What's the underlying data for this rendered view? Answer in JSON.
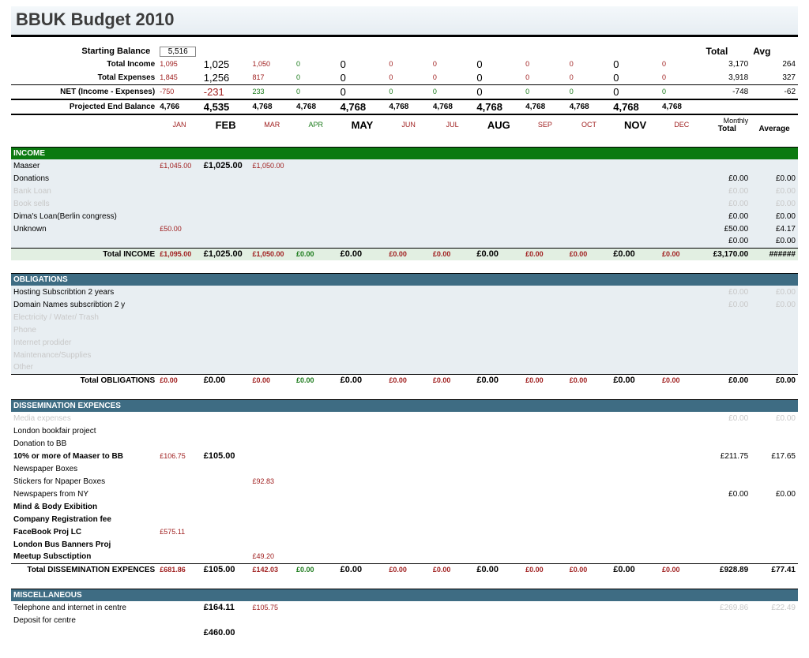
{
  "title": "BBUK Budget 2010",
  "colors": {
    "income_section": "#0b7a10",
    "other_section": "#3e6c83",
    "shaded_row": "#e8eef2",
    "green_text": "#1a7a1a",
    "red_text": "#a02020",
    "faded_text": "#c8c8c8"
  },
  "months": {
    "short": [
      "JAN",
      "FEB",
      "MAR",
      "APR",
      "MAY",
      "JUN",
      "JUL",
      "AUG",
      "SEP",
      "OCT",
      "NOV",
      "DEC"
    ],
    "big_idx": [
      1,
      4,
      7,
      10
    ]
  },
  "headers": {
    "starting_balance_label": "Starting Balance",
    "total_income_label": "Total Income",
    "total_expenses_label": "Total Expenses",
    "net_label": "NET (Income - Expenses)",
    "projected_label": "Projected End Balance",
    "total": "Total",
    "avg": "Avg",
    "monthly": "Monthly",
    "total2": "Total",
    "average": "Average"
  },
  "summary": {
    "starting_balance": "5,516",
    "total_income": [
      "1,095",
      "1,025",
      "1,050",
      "0",
      "0",
      "0",
      "0",
      "0",
      "0",
      "0",
      "0",
      "0"
    ],
    "total_income_tot": "3,170",
    "total_income_avg": "264",
    "total_expenses": [
      "1,845",
      "1,256",
      "817",
      "0",
      "0",
      "0",
      "0",
      "0",
      "0",
      "0",
      "0",
      "0"
    ],
    "total_expenses_tot": "3,918",
    "total_expenses_avg": "327",
    "net": [
      "-750",
      "-231",
      "233",
      "0",
      "0",
      "0",
      "0",
      "0",
      "0",
      "0",
      "0",
      "0"
    ],
    "net_tot": "-748",
    "net_avg": "-62",
    "projected": [
      "4,766",
      "4,535",
      "4,768",
      "4,768",
      "4,768",
      "4,768",
      "4,768",
      "4,768",
      "4,768",
      "4,768",
      "4,768",
      "4,768"
    ]
  },
  "sections": [
    {
      "key": "income",
      "title": "INCOME",
      "bg": "#0b7a10",
      "shaded": true,
      "rows": [
        {
          "label": "Maaser",
          "vals": [
            "£1,045.00",
            "£1,025.00",
            "£1,050.00",
            "",
            "",
            "",
            "",
            "",
            "",
            "",
            "",
            ""
          ],
          "tot": "",
          "avg": ""
        },
        {
          "label": "Donations",
          "vals": [
            "",
            "",
            "",
            "",
            "",
            "",
            "",
            "",
            "",
            "",
            "",
            ""
          ],
          "tot": "£0.00",
          "avg": "£0.00"
        },
        {
          "label": "Bank Loan",
          "faded": true,
          "vals": [
            "",
            "",
            "",
            "",
            "",
            "",
            "",
            "",
            "",
            "",
            "",
            ""
          ],
          "tot": "£0.00",
          "avg": "£0.00",
          "fadedTot": true
        },
        {
          "label": "Book sells",
          "faded": true,
          "vals": [
            "",
            "",
            "",
            "",
            "",
            "",
            "",
            "",
            "",
            "",
            "",
            ""
          ],
          "tot": "£0.00",
          "avg": "£0.00",
          "fadedTot": true
        },
        {
          "label": "Dima's Loan(Berlin congress)",
          "vals": [
            "",
            "",
            "",
            "",
            "",
            "",
            "",
            "",
            "",
            "",
            "",
            ""
          ],
          "tot": "£0.00",
          "avg": "£0.00"
        },
        {
          "label": "Unknown",
          "vals": [
            "£50.00",
            "",
            "",
            "",
            "",
            "",
            "",
            "",
            "",
            "",
            "",
            ""
          ],
          "tot": "£50.00",
          "avg": "£4.17"
        },
        {
          "label": "",
          "vals": [
            "",
            "",
            "",
            "",
            "",
            "",
            "",
            "",
            "",
            "",
            "",
            ""
          ],
          "tot": "£0.00",
          "avg": "£0.00"
        }
      ],
      "totalRow": {
        "label": "Total INCOME",
        "vals": [
          "£1,095.00",
          "£1,025.00",
          "£1,050.00",
          "£0.00",
          "£0.00",
          "£0.00",
          "£0.00",
          "£0.00",
          "£0.00",
          "£0.00",
          "£0.00",
          "£0.00"
        ],
        "tot": "£3,170.00",
        "avg": "######",
        "light": true
      }
    },
    {
      "key": "obligations",
      "title": "OBLIGATIONS",
      "bg": "#3e6c83",
      "shaded": true,
      "rows": [
        {
          "label": "Hosting Subscribtion 2 years",
          "vals": [
            "",
            "",
            "",
            "",
            "",
            "",
            "",
            "",
            "",
            "",
            "",
            ""
          ],
          "tot": "£0.00",
          "avg": "£0.00",
          "fadedTot": true
        },
        {
          "label": "Domain Names subscribtion 2 y",
          "vals": [
            "",
            "",
            "",
            "",
            "",
            "",
            "",
            "",
            "",
            "",
            "",
            ""
          ],
          "tot": "£0.00",
          "avg": "£0.00",
          "fadedTot": true
        },
        {
          "label": "Electricity / Water/ Trash",
          "faded": true,
          "vals": [
            "",
            "",
            "",
            "",
            "",
            "",
            "",
            "",
            "",
            "",
            "",
            ""
          ],
          "tot": "",
          "avg": ""
        },
        {
          "label": "Phone",
          "faded": true,
          "vals": [
            "",
            "",
            "",
            "",
            "",
            "",
            "",
            "",
            "",
            "",
            "",
            ""
          ],
          "tot": "",
          "avg": ""
        },
        {
          "label": "Internet prodider",
          "faded": true,
          "vals": [
            "",
            "",
            "",
            "",
            "",
            "",
            "",
            "",
            "",
            "",
            "",
            ""
          ],
          "tot": "",
          "avg": ""
        },
        {
          "label": "Maintenance/Supplies",
          "faded": true,
          "vals": [
            "",
            "",
            "",
            "",
            "",
            "",
            "",
            "",
            "",
            "",
            "",
            ""
          ],
          "tot": "",
          "avg": ""
        },
        {
          "label": "Other",
          "faded": true,
          "vals": [
            "",
            "",
            "",
            "",
            "",
            "",
            "",
            "",
            "",
            "",
            "",
            ""
          ],
          "tot": "",
          "avg": ""
        }
      ],
      "totalRow": {
        "label": "Total OBLIGATIONS",
        "vals": [
          "£0.00",
          "£0.00",
          "£0.00",
          "£0.00",
          "£0.00",
          "£0.00",
          "£0.00",
          "£0.00",
          "£0.00",
          "£0.00",
          "£0.00",
          "£0.00"
        ],
        "tot": "£0.00",
        "avg": "£0.00"
      }
    },
    {
      "key": "dissemination",
      "title": "DISSEMINATION EXPENCES",
      "bg": "#3e6c83",
      "shaded": false,
      "rows": [
        {
          "label": "Media expenses",
          "faded": true,
          "vals": [
            "",
            "",
            "",
            "",
            "",
            "",
            "",
            "",
            "",
            "",
            "",
            ""
          ],
          "tot": "£0.00",
          "avg": "£0.00",
          "fadedTot": true
        },
        {
          "label": "London bookfair project",
          "vals": [
            "",
            "",
            "",
            "",
            "",
            "",
            "",
            "",
            "",
            "",
            "",
            ""
          ],
          "tot": "",
          "avg": ""
        },
        {
          "label": "Donation to BB",
          "vals": [
            "",
            "",
            "",
            "",
            "",
            "",
            "",
            "",
            "",
            "",
            "",
            ""
          ],
          "tot": "",
          "avg": ""
        },
        {
          "label": "10% or more of Maaser to BB",
          "bold": true,
          "vals": [
            "£106.75",
            "£105.00",
            "",
            "",
            "",
            "",
            "",
            "",
            "",
            "",
            "",
            ""
          ],
          "tot": "£211.75",
          "avg": "£17.65"
        },
        {
          "label": "Newspaper Boxes",
          "vals": [
            "",
            "",
            "",
            "",
            "",
            "",
            "",
            "",
            "",
            "",
            "",
            ""
          ],
          "tot": "",
          "avg": ""
        },
        {
          "label": "Stickers for Npaper Boxes",
          "vals": [
            "",
            "",
            "£92.83",
            "",
            "",
            "",
            "",
            "",
            "",
            "",
            "",
            ""
          ],
          "tot": "",
          "avg": ""
        },
        {
          "label": "Newspapers from NY",
          "vals": [
            "",
            "",
            "",
            "",
            "",
            "",
            "",
            "",
            "",
            "",
            "",
            ""
          ],
          "tot": "£0.00",
          "avg": "£0.00"
        },
        {
          "label": "Mind & Body Exibition",
          "bold": true,
          "vals": [
            "",
            "",
            "",
            "",
            "",
            "",
            "",
            "",
            "",
            "",
            "",
            ""
          ],
          "tot": "",
          "avg": ""
        },
        {
          "label": "Company Registration fee",
          "bold": true,
          "vals": [
            "",
            "",
            "",
            "",
            "",
            "",
            "",
            "",
            "",
            "",
            "",
            ""
          ],
          "tot": "",
          "avg": ""
        },
        {
          "label": "FaceBook Proj LC",
          "bold": true,
          "vals": [
            "£575.11",
            "",
            "",
            "",
            "",
            "",
            "",
            "",
            "",
            "",
            "",
            ""
          ],
          "tot": "",
          "avg": ""
        },
        {
          "label": "London Bus Banners Proj",
          "bold": true,
          "vals": [
            "",
            "",
            "",
            "",
            "",
            "",
            "",
            "",
            "",
            "",
            "",
            ""
          ],
          "tot": "",
          "avg": ""
        },
        {
          "label": "Meetup Subsctiption",
          "bold": true,
          "vals": [
            "",
            "",
            "£49.20",
            "",
            "",
            "",
            "",
            "",
            "",
            "",
            "",
            ""
          ],
          "tot": "",
          "avg": ""
        }
      ],
      "totalRow": {
        "label": "Total DISSEMINATION EXPENCES",
        "vals": [
          "£681.86",
          "£105.00",
          "£142.03",
          "£0.00",
          "£0.00",
          "£0.00",
          "£0.00",
          "£0.00",
          "£0.00",
          "£0.00",
          "£0.00",
          "£0.00"
        ],
        "tot": "£928.89",
        "avg": "£77.41"
      }
    },
    {
      "key": "misc",
      "title": "MISCELLANEOUS",
      "bg": "#3e6c83",
      "shaded": false,
      "rows": [
        {
          "label": "Telephone and internet in centre",
          "vals": [
            "",
            "£164.11",
            "£105.75",
            "",
            "",
            "",
            "",
            "",
            "",
            "",
            "",
            ""
          ],
          "tot": "£269.86",
          "avg": "£22.49",
          "fadedTot": true
        },
        {
          "label": "Deposit for centre",
          "vals": [
            "",
            "",
            "",
            "",
            "",
            "",
            "",
            "",
            "",
            "",
            "",
            ""
          ],
          "tot": "",
          "avg": ""
        },
        {
          "label": "",
          "vals": [
            "",
            "£460.00",
            "",
            "",
            "",
            "",
            "",
            "",
            "",
            "",
            "",
            ""
          ],
          "tot": "",
          "avg": ""
        }
      ]
    }
  ],
  "value_color_rule": {
    "red_months_idx_small": [
      0,
      2,
      5,
      6,
      8,
      9,
      11
    ],
    "big_months_idx": [
      1,
      4,
      7,
      10
    ]
  }
}
